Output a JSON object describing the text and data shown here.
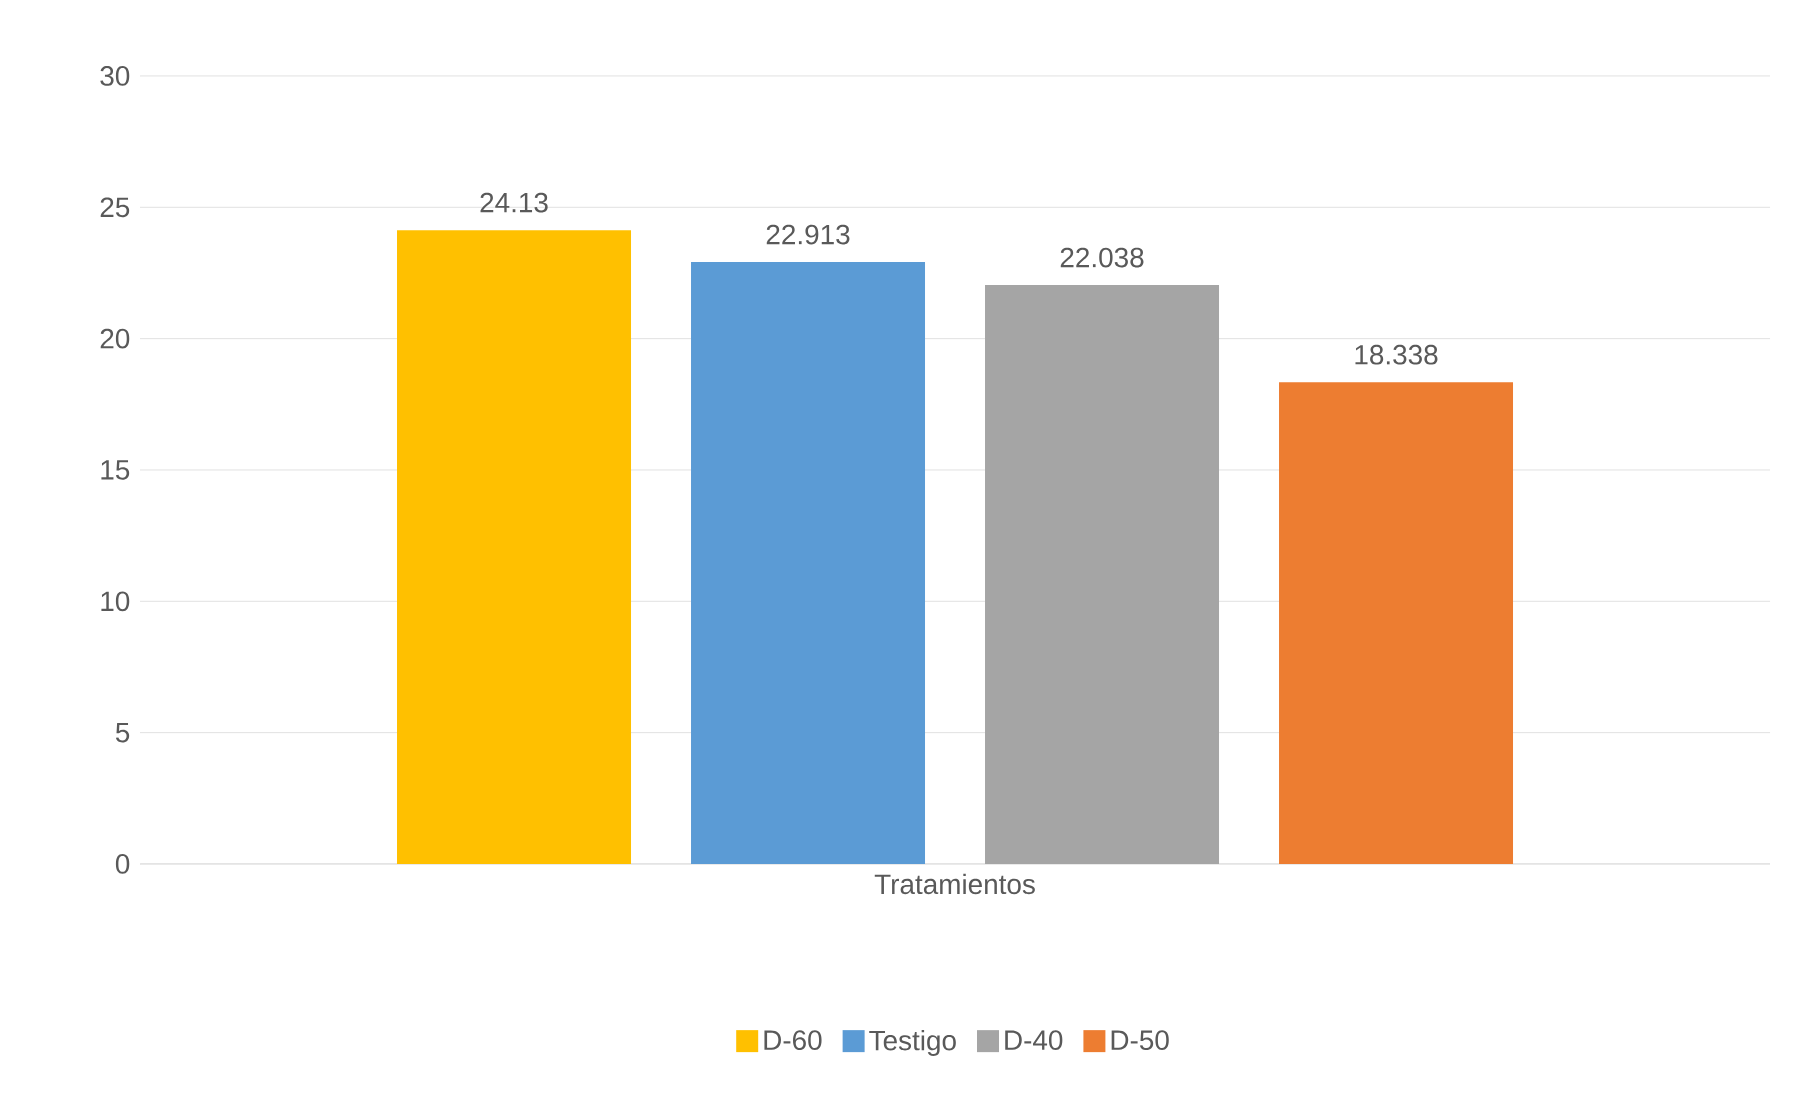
{
  "chart_data": {
    "type": "bar",
    "categories": [
      "Tratamientos"
    ],
    "series": [
      {
        "name": "D-60",
        "color": "#ffc000",
        "values": [
          24.13
        ]
      },
      {
        "name": "Testigo",
        "color": "#5b9bd5",
        "values": [
          22.913
        ]
      },
      {
        "name": "D-40",
        "color": "#a5a5a5",
        "values": [
          22.038
        ]
      },
      {
        "name": "D-50",
        "color": "#ed7d31",
        "values": [
          18.338
        ]
      }
    ],
    "ylim": [
      0,
      30
    ],
    "yticks": [
      0,
      5,
      10,
      15,
      20,
      25,
      30
    ],
    "grid": "y",
    "legend": "bottom",
    "data_labels": true
  }
}
